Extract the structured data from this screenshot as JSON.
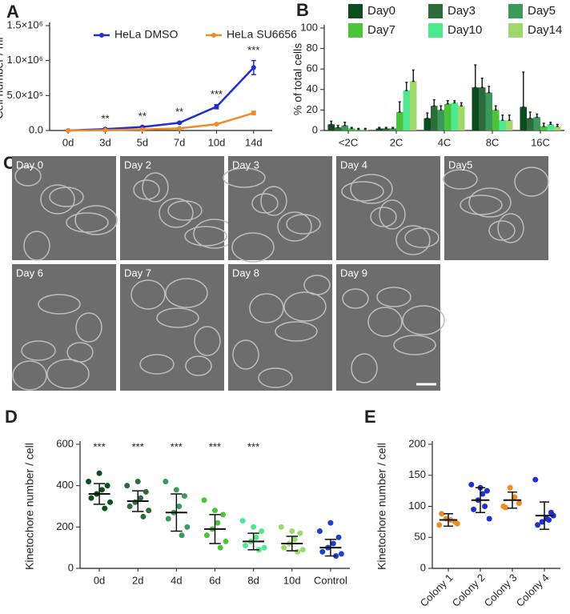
{
  "chart_data": [
    {
      "type": "line",
      "panel": "A",
      "ylabel": "Cell number / ml",
      "categories": [
        "0d",
        "3d",
        "5d",
        "7d",
        "10d",
        "14d"
      ],
      "series": [
        {
          "name": "HeLa DMSO",
          "color": "#1f2fd0",
          "values": [
            0,
            20000,
            50000,
            110000,
            340000,
            900000
          ],
          "errors": [
            0,
            3000,
            8000,
            10000,
            30000,
            100000
          ]
        },
        {
          "name": "HeLa SU6656",
          "color": "#f08a24",
          "values": [
            0,
            5000,
            15000,
            30000,
            90000,
            250000
          ],
          "errors": [
            0,
            2000,
            3000,
            5000,
            10000,
            25000
          ]
        }
      ],
      "ylim": [
        0,
        1500000
      ],
      "yticks": [
        {
          "value": 0,
          "label": "0.0"
        },
        {
          "value": 500000,
          "label": "5.0×10⁵"
        },
        {
          "value": 1000000,
          "label": "1.0×10⁶"
        },
        {
          "value": 1500000,
          "label": "1.5×10⁶"
        }
      ],
      "annotations": [
        {
          "text": "**",
          "x": "3d"
        },
        {
          "text": "**",
          "x": "5d"
        },
        {
          "text": "**",
          "x": "7d"
        },
        {
          "text": "***",
          "x": "10d"
        },
        {
          "text": "***",
          "x": "14d"
        }
      ]
    },
    {
      "type": "bar",
      "panel": "B",
      "ylabel": "% of total cells",
      "categories": [
        "<2C",
        "2C",
        "4C",
        "8C",
        "16C"
      ],
      "series": [
        {
          "name": "Day0",
          "color": "#0b4d1e",
          "values": [
            6,
            2,
            12,
            42,
            23
          ],
          "errors": [
            3,
            1,
            5,
            22,
            34
          ]
        },
        {
          "name": "Day3",
          "color": "#2e6b3a",
          "values": [
            3,
            2,
            24,
            42,
            12
          ],
          "errors": [
            2,
            1,
            6,
            9,
            6
          ]
        },
        {
          "name": "Day5",
          "color": "#3a9a5b",
          "values": [
            5,
            2,
            20,
            37,
            13
          ],
          "errors": [
            3,
            1,
            4,
            6,
            3
          ]
        },
        {
          "name": "Day7",
          "color": "#4cc43a",
          "values": [
            2,
            18,
            26,
            20,
            4
          ],
          "errors": [
            1,
            10,
            3,
            4,
            3
          ]
        },
        {
          "name": "Day10",
          "color": "#4de88f",
          "values": [
            1,
            39,
            27,
            10,
            6
          ],
          "errors": [
            1,
            8,
            2,
            5,
            2
          ]
        },
        {
          "name": "Day14",
          "color": "#9fd86a",
          "values": [
            1,
            48,
            24,
            10,
            4
          ],
          "errors": [
            1,
            11,
            3,
            5,
            2
          ]
        }
      ],
      "ylim": [
        0,
        100
      ],
      "yticks": [
        0,
        20,
        40,
        60,
        80,
        100
      ]
    },
    {
      "type": "images",
      "panel": "C",
      "labels": [
        "Day 0",
        "Day 2",
        "Day 3",
        "Day 4",
        "Day5",
        "Day 6",
        "Day 7",
        "Day 8",
        "Day 9"
      ]
    },
    {
      "type": "dot",
      "panel": "D",
      "ylabel": "Kinetochore number / cell",
      "categories": [
        "0d",
        "2d",
        "4d",
        "6d",
        "8d",
        "10d",
        "Control"
      ],
      "colors": [
        "#0b4d1e",
        "#2e6b3a",
        "#3a9a5b",
        "#4cc43a",
        "#4de88f",
        "#9fd86a",
        "#1f3fcf"
      ],
      "points": [
        [
          420,
          400,
          380,
          360,
          340,
          320,
          290,
          460
        ],
        [
          400,
          370,
          340,
          320,
          300,
          280,
          250,
          420
        ],
        [
          420,
          350,
          300,
          270,
          240,
          200,
          160,
          380
        ],
        [
          330,
          260,
          220,
          190,
          160,
          130,
          100,
          280
        ],
        [
          230,
          180,
          150,
          130,
          110,
          100,
          90,
          200
        ],
        [
          200,
          170,
          140,
          120,
          100,
          90,
          80,
          180
        ],
        [
          180,
          150,
          120,
          100,
          80,
          70,
          60,
          220
        ]
      ],
      "means": [
        360,
        325,
        270,
        190,
        130,
        120,
        100
      ],
      "sd": [
        50,
        50,
        90,
        70,
        40,
        35,
        40
      ],
      "ylim": [
        0,
        600
      ],
      "yticks": [
        0,
        200,
        400,
        600
      ],
      "annotations": [
        {
          "text": "***",
          "x": "0d"
        },
        {
          "text": "***",
          "x": "2d"
        },
        {
          "text": "***",
          "x": "4d"
        },
        {
          "text": "***",
          "x": "6d"
        },
        {
          "text": "***",
          "x": "8d"
        }
      ]
    },
    {
      "type": "dot",
      "panel": "E",
      "ylabel": "Kinetochore number / cell",
      "rotate_labels": true,
      "categories": [
        "Colony 1",
        "Colony 2",
        "Colony 3",
        "Colony 4"
      ],
      "colors": [
        "#f08a24",
        "#1f2fd0",
        "#f08a24",
        "#1f2fd0"
      ],
      "points": [
        [
          70,
          75,
          78,
          80,
          88,
          72
        ],
        [
          135,
          125,
          120,
          110,
          95,
          80,
          100,
          130
        ],
        [
          100,
          105,
          115,
          130,
          98
        ],
        [
          143,
          90,
          80,
          75,
          70,
          85,
          78
        ]
      ],
      "means": [
        78,
        110,
        110,
        85
      ],
      "sd": [
        10,
        20,
        13,
        22
      ],
      "ylim": [
        0,
        200
      ],
      "yticks": [
        0,
        50,
        100,
        150,
        200
      ]
    }
  ]
}
